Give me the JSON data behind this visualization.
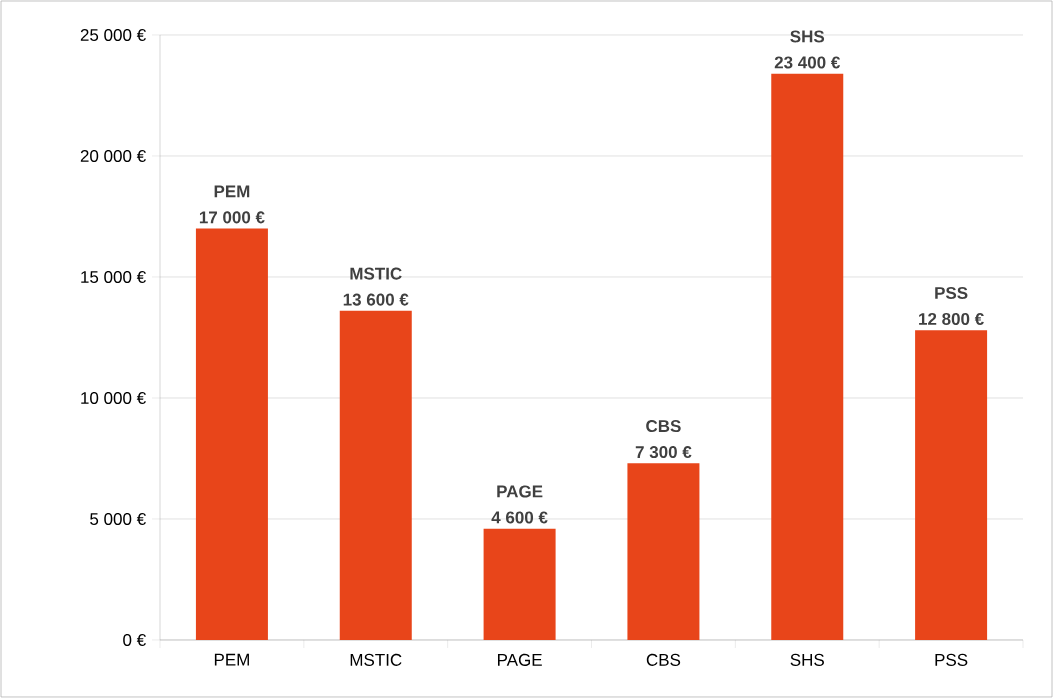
{
  "chart_data": {
    "type": "bar",
    "categories": [
      "PEM",
      "MSTIC",
      "PAGE",
      "CBS",
      "SHS",
      "PSS"
    ],
    "values": [
      17000,
      13600,
      4600,
      7300,
      23400,
      12800
    ],
    "value_labels": [
      "17 000 €",
      "13 600 €",
      "4 600 €",
      "7 300 €",
      "23 400 €",
      "12 800 €"
    ],
    "color": "#e8451a",
    "ylim": [
      0,
      25000
    ],
    "yticks": [
      {
        "value": 0,
        "label": "0 €"
      },
      {
        "value": 5000,
        "label": "5 000 €"
      },
      {
        "value": 10000,
        "label": "10 000 €"
      },
      {
        "value": 15000,
        "label": "15 000 €"
      },
      {
        "value": 20000,
        "label": "20 000 €"
      },
      {
        "value": 25000,
        "label": "25 000 €"
      }
    ],
    "grid": "y"
  }
}
